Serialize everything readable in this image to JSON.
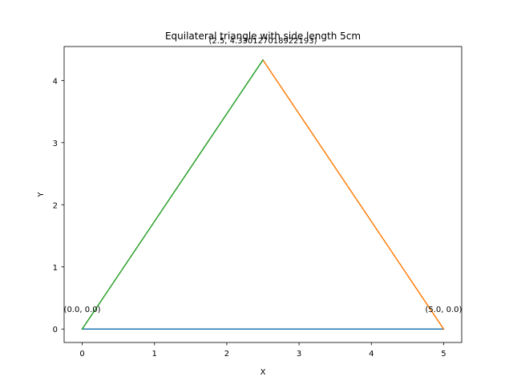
{
  "chart_data": {
    "type": "line",
    "title": "Equilateral triangle with side length 5cm",
    "xlabel": "X",
    "ylabel": "Y",
    "xlim": [
      -0.25,
      5.25
    ],
    "ylim": [
      -0.2165,
      4.5466
    ],
    "xticks": [
      0,
      1,
      2,
      3,
      4,
      5
    ],
    "yticks": [
      0,
      1,
      2,
      3,
      4
    ],
    "grid": false,
    "series": [
      {
        "color": "#1f77b4",
        "x": [
          0.0,
          5.0
        ],
        "y": [
          0.0,
          0.0
        ]
      },
      {
        "color": "#ff7f0e",
        "x": [
          5.0,
          2.5
        ],
        "y": [
          0.0,
          4.330127018922193
        ]
      },
      {
        "color": "#2ca02c",
        "x": [
          2.5,
          0.0
        ],
        "y": [
          4.330127018922193,
          0.0
        ]
      }
    ],
    "annotations": [
      {
        "text": "(0.0, 0.0)",
        "x": 0.0,
        "y": 0.0
      },
      {
        "text": "(5.0, 0.0)",
        "x": 5.0,
        "y": 0.0
      },
      {
        "text": "(2.5, 4.330127018922193)",
        "x": 2.5,
        "y": 4.330127018922193
      }
    ]
  }
}
